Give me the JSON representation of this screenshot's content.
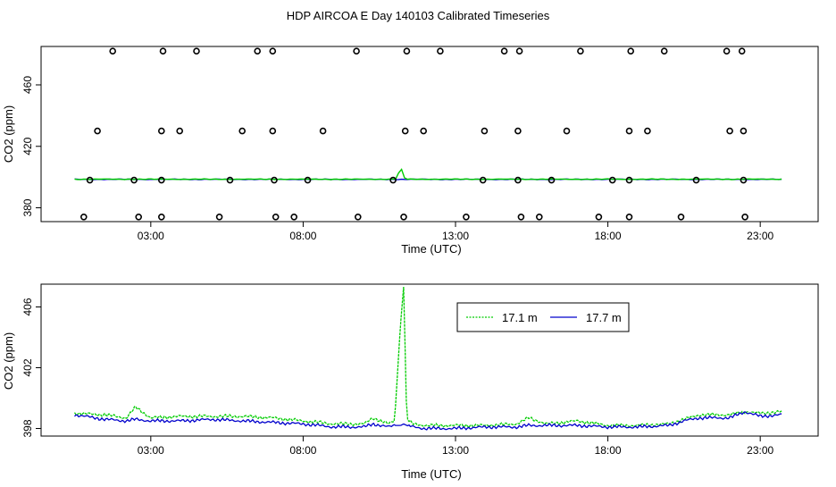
{
  "title": "HDP AIRCOA E  Day 140103  Calibrated Timeseries",
  "chart_data": [
    {
      "type": "scatter",
      "xlabel": "Time (UTC)",
      "ylabel": "CO2 (ppm)",
      "x_unit": "hours UTC",
      "xlim": [
        -0.6,
        24.9
      ],
      "ylim": [
        371,
        485
      ],
      "x_ticks": [
        3,
        8,
        13,
        18,
        23
      ],
      "x_tick_labels": [
        "03:00",
        "08:00",
        "13:00",
        "18:00",
        "23:00"
      ],
      "y_ticks": [
        380,
        420,
        460
      ],
      "y_tick_labels": [
        "380",
        "420",
        "460"
      ],
      "grid": false,
      "legend": "none",
      "points": [
        {
          "level": 482,
          "x": [
            1.75,
            3.4,
            4.5,
            6.5,
            7.0,
            9.75,
            11.4,
            12.5,
            14.6,
            15.1,
            17.1,
            18.75,
            19.85,
            21.9,
            22.4
          ]
        },
        {
          "level": 430,
          "x": [
            1.25,
            3.35,
            3.95,
            6.0,
            7.0,
            8.65,
            11.35,
            11.95,
            13.95,
            15.05,
            16.65,
            18.7,
            19.3,
            22.0,
            22.45
          ]
        },
        {
          "level": 398,
          "x": [
            1.0,
            2.45,
            3.35,
            5.6,
            7.05,
            8.15,
            10.95,
            13.9,
            15.05,
            16.15,
            18.15,
            18.7,
            20.9,
            22.45
          ]
        },
        {
          "level": 374,
          "x": [
            0.8,
            2.6,
            3.35,
            5.25,
            7.1,
            7.7,
            9.8,
            11.3,
            13.35,
            15.15,
            15.75,
            17.7,
            18.7,
            20.4,
            22.5
          ]
        }
      ],
      "series": [
        {
          "name": "17.1 m",
          "color": "#00cc00",
          "baseline": 398.6,
          "spike": {
            "x": 11.2,
            "peak": 405.5
          }
        },
        {
          "name": "17.7 m",
          "color": "#0000cc",
          "baseline": 398.5
        }
      ]
    },
    {
      "type": "line",
      "xlabel": "Time (UTC)",
      "ylabel": "CO2 (ppm)",
      "x_unit": "hours UTC",
      "xlim": [
        -0.6,
        24.9
      ],
      "ylim": [
        397.5,
        407.5
      ],
      "x_ticks": [
        3,
        8,
        13,
        18,
        23
      ],
      "x_tick_labels": [
        "03:00",
        "08:00",
        "13:00",
        "18:00",
        "23:00"
      ],
      "y_ticks": [
        398,
        402,
        406
      ],
      "y_tick_labels": [
        "398",
        "402",
        "406"
      ],
      "grid": false,
      "legend": "top-center",
      "x": [
        0.5,
        1.5,
        2.2,
        2.5,
        3.0,
        4.0,
        5.0,
        6.0,
        7.0,
        8.0,
        9.0,
        10.0,
        10.3,
        10.8,
        11.0,
        11.2,
        11.3,
        11.4,
        11.6,
        12.0,
        13.0,
        14.0,
        15.0,
        15.4,
        16.0,
        17.0,
        18.0,
        19.0,
        20.0,
        20.5,
        21.0,
        22.0,
        22.5,
        23.0,
        23.7
      ],
      "series": [
        {
          "name": "17.1 m",
          "color": "#00cc00",
          "values": [
            399.0,
            398.9,
            398.7,
            399.4,
            398.7,
            398.8,
            398.8,
            398.8,
            398.7,
            398.5,
            398.3,
            398.3,
            398.7,
            398.3,
            398.5,
            405.0,
            407.4,
            398.6,
            398.3,
            398.2,
            398.2,
            398.2,
            398.3,
            398.7,
            398.3,
            398.5,
            398.2,
            398.2,
            398.3,
            398.6,
            398.9,
            398.9,
            399.1,
            399.0,
            399.1
          ]
        },
        {
          "name": "17.7 m",
          "color": "#0000cc",
          "values": [
            398.9,
            398.6,
            398.5,
            398.6,
            398.5,
            398.5,
            398.6,
            398.5,
            398.4,
            398.3,
            398.1,
            398.1,
            398.3,
            398.1,
            398.2,
            398.2,
            398.3,
            398.2,
            398.1,
            398.0,
            398.0,
            398.1,
            398.1,
            398.2,
            398.2,
            398.2,
            398.1,
            398.1,
            398.2,
            398.5,
            398.7,
            398.7,
            399.1,
            398.8,
            398.9
          ]
        }
      ],
      "legend_entries": [
        "17.1 m",
        "17.7 m"
      ]
    }
  ]
}
